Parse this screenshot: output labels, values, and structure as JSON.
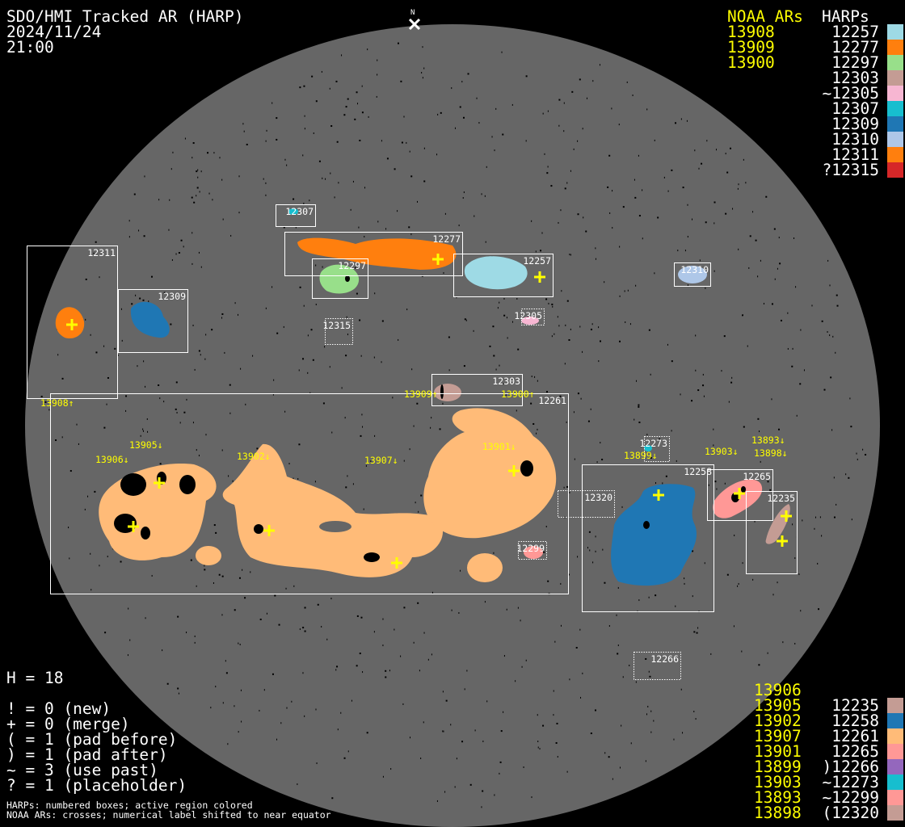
{
  "header": {
    "title": "SDO/HMI Tracked AR (HARP)",
    "date": "2024/11/24",
    "time": "21:00",
    "north_label": "N"
  },
  "legend_top": {
    "noaa_header": "NOAA ARs",
    "harps_header": "HARPs",
    "noaa": [
      "13908",
      "13909",
      "13900"
    ],
    "harps": [
      {
        "label": "12257",
        "color": "#9edae5"
      },
      {
        "label": "12277",
        "color": "#ff7f0e"
      },
      {
        "label": "12297",
        "color": "#98df8a"
      },
      {
        "label": "12303",
        "color": "#c49c94"
      },
      {
        "label": "~12305",
        "color": "#f7b6d2"
      },
      {
        "label": "12307",
        "color": "#17becf"
      },
      {
        "label": "12309",
        "color": "#1f77b4"
      },
      {
        "label": "12310",
        "color": "#aec7e8"
      },
      {
        "label": "12311",
        "color": "#ff7f0e"
      },
      {
        "label": "?12315",
        "color": "#d62728"
      }
    ]
  },
  "legend_bottom": {
    "noaa": [
      "13906",
      "13905",
      "13902",
      "13907",
      "13901",
      "13899",
      "13903",
      "13893",
      "13898"
    ],
    "harps": [
      {
        "label": "12235",
        "color": "#c49c94"
      },
      {
        "label": "12258",
        "color": "#1f77b4"
      },
      {
        "label": "12261",
        "color": "#ffbb78"
      },
      {
        "label": "12265",
        "color": "#ff9896"
      },
      {
        "label": ")12266",
        "color": "#9467bd"
      },
      {
        "label": "~12273",
        "color": "#17becf"
      },
      {
        "label": "~12299",
        "color": "#ff9896"
      },
      {
        "label": "(12320",
        "color": "#c49c94"
      }
    ]
  },
  "stats": {
    "h_count": "H = 18",
    "lines": [
      "! = 0 (new)",
      "+ = 0 (merge)",
      "( = 1 (pad before)",
      ") = 1 (pad after)",
      "~ = 3 (use past)",
      "? = 1 (placeholder)"
    ]
  },
  "footer": {
    "line1": "HARPs: numbered boxes; active region colored",
    "line2": "NOAA ARs: crosses; numerical label shifted to near equator"
  },
  "disk": {
    "harp_boxes": [
      {
        "label": "12307",
        "color": "#17becf"
      },
      {
        "label": "12277",
        "color": "#ff7f0e"
      },
      {
        "label": "12297",
        "color": "#98df8a"
      },
      {
        "label": "12257",
        "color": "#9edae5"
      },
      {
        "label": "12310",
        "color": "#aec7e8"
      },
      {
        "label": "12311",
        "color": "#ff7f0e"
      },
      {
        "label": "12309",
        "color": "#1f77b4"
      },
      {
        "label": "12305",
        "color": "#f7b6d2"
      },
      {
        "label": "12315",
        "color": "#d62728"
      },
      {
        "label": "12303",
        "color": "#c49c94"
      },
      {
        "label": "12261",
        "color": "#ffbb78"
      },
      {
        "label": "12273",
        "color": "#17becf"
      },
      {
        "label": "12258",
        "color": "#1f77b4"
      },
      {
        "label": "12265",
        "color": "#ff9896"
      },
      {
        "label": "12235",
        "color": "#c49c94"
      },
      {
        "label": "12320",
        "color": "#c49c94"
      },
      {
        "label": "12299",
        "color": "#ff9896"
      },
      {
        "label": "12266",
        "color": "#9467bd"
      }
    ],
    "noaa_labels": [
      "13908↑",
      "13909↑",
      "13900↑",
      "13906↓",
      "13905↓",
      "13902↓",
      "13907↓",
      "13901↓",
      "13899↓",
      "13903↓",
      "13893↓",
      "13898↓"
    ]
  }
}
